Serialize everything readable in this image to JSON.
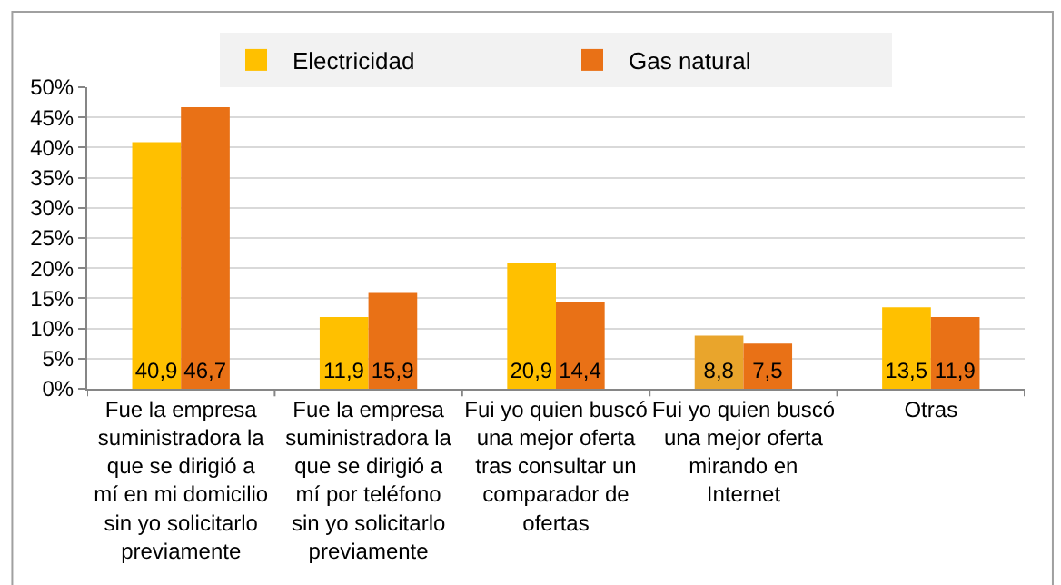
{
  "chart_data": {
    "type": "bar",
    "categories": [
      "Fue la empresa suministradora la que se dirigió a mí en mi domicilio sin yo solicitarlo previamente",
      "Fue la empresa suministradora la que se dirigió a mí por teléfono sin yo solicitarlo previamente",
      "Fui yo quien buscó una mejor oferta tras consultar un comparador de ofertas",
      "Fui yo quien buscó una mejor oferta mirando en Internet",
      "Otras"
    ],
    "series": [
      {
        "name": "Electricidad",
        "color": "#ffc000",
        "colors": [
          "#ffc000",
          "#ffc000",
          "#ffc000",
          "#e9a52c",
          "#ffc000"
        ],
        "values": [
          40.9,
          11.9,
          20.9,
          8.8,
          13.5
        ],
        "value_labels": [
          "40,9",
          "11,9",
          "20,9",
          "8,8",
          "13,5"
        ]
      },
      {
        "name": "Gas natural",
        "color": "#e97116",
        "values": [
          46.7,
          15.9,
          14.4,
          7.5,
          11.9
        ],
        "value_labels": [
          "46,7",
          "15,9",
          "14,4",
          "7,5",
          "11,9"
        ]
      }
    ],
    "ylim": [
      0,
      50
    ],
    "yticks": [
      {
        "value": 0,
        "label": "0%"
      },
      {
        "value": 5,
        "label": "5%"
      },
      {
        "value": 10,
        "label": "10%"
      },
      {
        "value": 15,
        "label": "15%"
      },
      {
        "value": 20,
        "label": "20%"
      },
      {
        "value": 25,
        "label": "25%"
      },
      {
        "value": 30,
        "label": "30%"
      },
      {
        "value": 35,
        "label": "35%"
      },
      {
        "value": 40,
        "label": "40%"
      },
      {
        "value": 45,
        "label": "45%"
      },
      {
        "value": 50,
        "label": "50%"
      }
    ],
    "grid": "y",
    "legend": "top"
  }
}
